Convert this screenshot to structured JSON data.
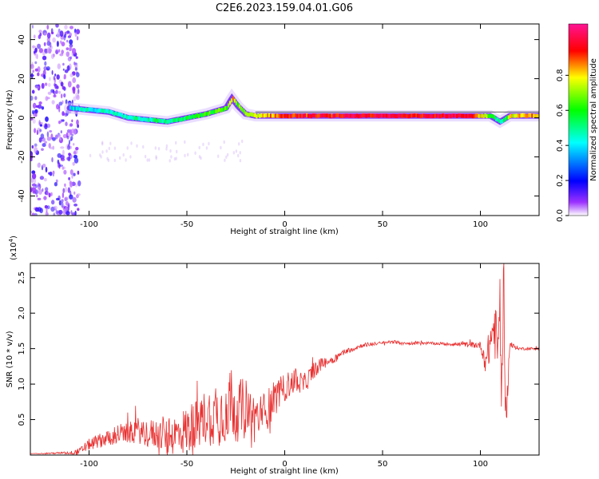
{
  "figure_title": "C2E6.2023.159.04.01.G06",
  "chart_data": [
    {
      "type": "heatmap",
      "title": "C2E6.2023.159.04.01.G06",
      "xlabel": "Height of straight line (km)",
      "ylabel": "Frequency (Hz)",
      "xlim": [
        -130,
        130
      ],
      "ylim": [
        -50,
        48
      ],
      "x_ticks": [
        -100,
        -50,
        0,
        50,
        100
      ],
      "y_ticks": [
        -40,
        -20,
        0,
        20,
        40
      ],
      "colorbar": {
        "label": "Normalized spectral amplitude",
        "range": [
          0,
          1
        ],
        "ticks": [
          "0.0",
          "0.2",
          "0.4",
          "0.6",
          "0.8"
        ],
        "colors": [
          "#ffffff",
          "#9b30ff",
          "#0000ff",
          "#00ffff",
          "#00ff00",
          "#ffff00",
          "#ff0000",
          "#ff1493"
        ]
      },
      "ridge": {
        "description_points_x": [
          -110,
          -100,
          -90,
          -80,
          -70,
          -60,
          -50,
          -40,
          -30,
          -27,
          -24,
          -20,
          -15,
          0,
          50,
          85,
          95,
          105,
          110,
          115,
          130
        ],
        "frequency_hz": [
          5,
          4,
          3,
          0,
          -1,
          -2,
          0,
          2,
          5,
          10,
          6,
          2,
          1,
          1,
          1,
          1,
          1,
          1,
          -2,
          1,
          1
        ],
        "amplitude": [
          0.35,
          0.4,
          0.4,
          0.45,
          0.45,
          0.45,
          0.5,
          0.55,
          0.6,
          0.75,
          0.6,
          0.6,
          0.7,
          0.85,
          0.9,
          0.9,
          0.85,
          0.6,
          0.4,
          0.7,
          0.8
        ]
      },
      "noise_region_x": [
        -130,
        -105
      ]
    },
    {
      "type": "line",
      "xlabel": "Height of straight line (km)",
      "ylabel": "SNR (10 * v/v)",
      "scale_label": "(x10",
      "scale_exp": "4",
      "scale_close": ")",
      "xlim": [
        -130,
        130
      ],
      "ylim": [
        0,
        2.7
      ],
      "x_ticks": [
        -100,
        -50,
        0,
        50,
        100
      ],
      "y_ticks": [
        "0.5",
        "1.0",
        "1.5",
        "2.0",
        "2.5"
      ],
      "line_color": "#e83030",
      "series": [
        {
          "x": [
            -130,
            -110,
            -105,
            -100,
            -95,
            -90,
            -85,
            -80,
            -75,
            -70,
            -65,
            -60,
            -55,
            -50,
            -45,
            -40,
            -35,
            -30,
            -27,
            -25,
            -20,
            -15,
            -10,
            -5,
            0,
            5,
            10,
            15,
            20,
            25,
            30,
            40,
            50,
            55,
            60,
            70,
            80,
            90,
            100,
            103,
            105,
            107,
            109,
            110,
            111,
            112,
            113,
            115,
            120,
            130
          ],
          "y": [
            0.02,
            0.03,
            0.05,
            0.15,
            0.2,
            0.25,
            0.3,
            0.3,
            0.35,
            0.3,
            0.3,
            0.25,
            0.3,
            0.35,
            0.45,
            0.55,
            0.55,
            0.65,
            0.8,
            0.6,
            0.7,
            0.5,
            0.6,
            0.8,
            0.95,
            1.05,
            1.0,
            1.2,
            1.3,
            1.35,
            1.45,
            1.55,
            1.58,
            1.6,
            1.57,
            1.58,
            1.57,
            1.56,
            1.55,
            1.3,
            1.6,
            1.8,
            1.5,
            2.2,
            0.8,
            2.6,
            0.5,
            1.55,
            1.5,
            1.5
          ],
          "noise": [
            0,
            0.02,
            0.05,
            0.08,
            0.1,
            0.12,
            0.15,
            0.15,
            0.18,
            0.2,
            0.22,
            0.25,
            0.3,
            0.35,
            0.35,
            0.4,
            0.45,
            0.5,
            0.5,
            0.45,
            0.4,
            0.35,
            0.3,
            0.25,
            0.2,
            0.18,
            0.15,
            0.12,
            0.08,
            0.06,
            0.04,
            0.03,
            0.02,
            0.03,
            0.02,
            0.02,
            0.02,
            0.03,
            0.05,
            0.2,
            0.3,
            0.4,
            0.4,
            0.5,
            0.5,
            0.6,
            0.4,
            0.05,
            0.02,
            0.02
          ]
        }
      ]
    }
  ]
}
